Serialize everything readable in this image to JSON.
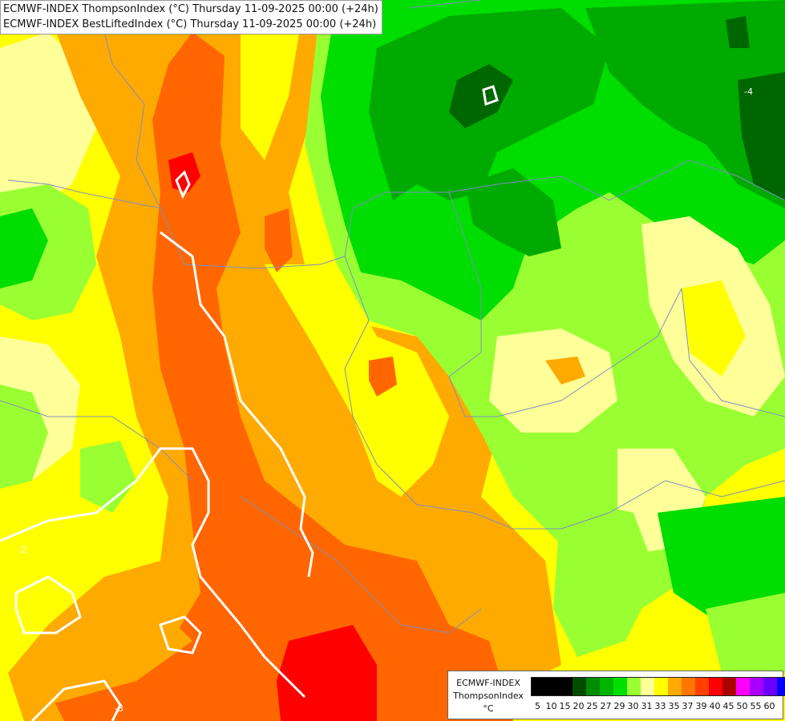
{
  "title": {
    "line1": "ECMWF-INDEX ThompsonIndex (°C) Thursday 11-09-2025 00:00 (+24h)",
    "line2": "ECMWF-INDEX BestLiftedIndex (°C) Thursday 11-09-2025 00:00 (+24h)"
  },
  "legend": {
    "model": "ECMWF-INDEX",
    "parameter": "ThompsonIndex",
    "unit": "°C",
    "ticks": [
      "5",
      "10",
      "15",
      "20",
      "25",
      "27",
      "29",
      "30",
      "31",
      "33",
      "35",
      "37",
      "39",
      "40",
      "45",
      "50",
      "55",
      "60"
    ],
    "colors": [
      "#000000",
      "#000000",
      "#000000",
      "#004d00",
      "#008c00",
      "#00b400",
      "#00e000",
      "#99ff33",
      "#ffff99",
      "#ffff00",
      "#ffaa00",
      "#ff7700",
      "#ff4000",
      "#ff0000",
      "#aa0000",
      "#ff00ff",
      "#aa00ff",
      "#6a00ff",
      "#0000ff"
    ]
  },
  "map_colors": {
    "dark_green": "#006600",
    "green": "#00aa00",
    "bright_green": "#00dd00",
    "light_green": "#99ff33",
    "pale_yellow": "#ffff99",
    "yellow": "#ffff00",
    "orange": "#ffaa00",
    "dark_orange": "#ff6600",
    "red": "#ff0000",
    "contour": "#ffffff",
    "border": "#7f8fbf"
  },
  "contour_labels": [
    "-2",
    "-3",
    "-4"
  ]
}
